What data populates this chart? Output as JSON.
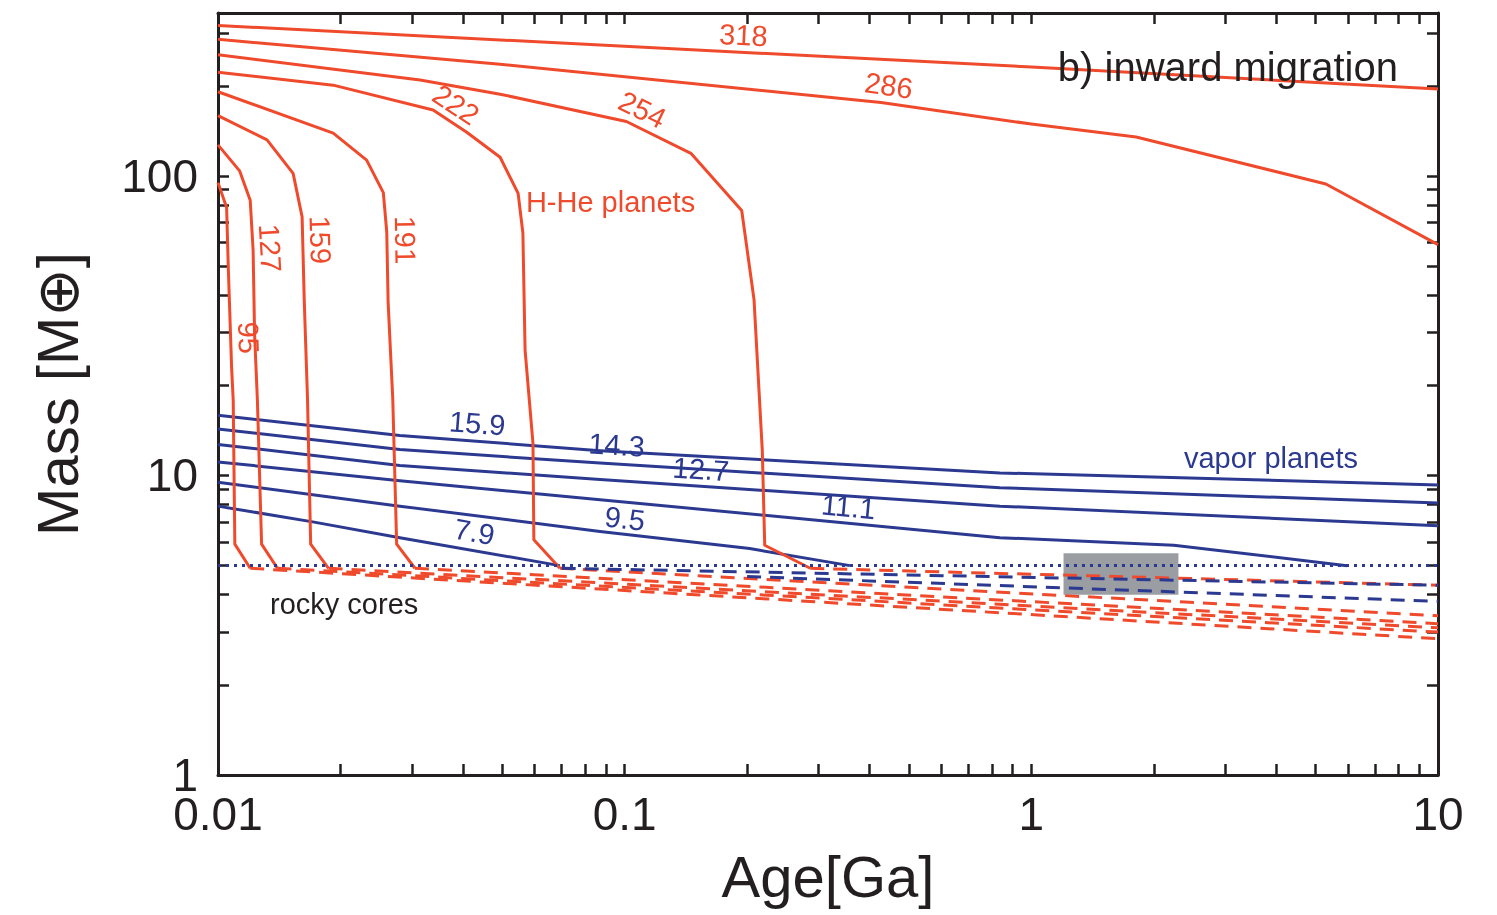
{
  "chart_data": {
    "type": "line",
    "title": "b) inward migration",
    "xlabel": "Age[Ga]",
    "ylabel": "Mass [M⊕]",
    "log": "xy",
    "grid": false,
    "marker": "none",
    "xlim": [
      0.01,
      10
    ],
    "ylim": [
      1,
      350
    ],
    "xticks": [
      0.01,
      {
        "value": 0.02,
        "label": null
      },
      {
        "value": 0.03,
        "label": null
      },
      {
        "value": 0.04,
        "label": null
      },
      {
        "value": 0.05,
        "label": null
      },
      {
        "value": 0.06,
        "label": null
      },
      {
        "value": 0.07,
        "label": null
      },
      {
        "value": 0.08,
        "label": null
      },
      {
        "value": 0.09,
        "label": null
      },
      0.1,
      {
        "value": 0.2,
        "label": null
      },
      {
        "value": 0.3,
        "label": null
      },
      {
        "value": 0.4,
        "label": null
      },
      {
        "value": 0.5,
        "label": null
      },
      {
        "value": 0.6,
        "label": null
      },
      {
        "value": 0.7,
        "label": null
      },
      {
        "value": 0.8,
        "label": null
      },
      {
        "value": 0.9,
        "label": null
      },
      1,
      {
        "value": 2,
        "label": null
      },
      {
        "value": 3,
        "label": null
      },
      {
        "value": 4,
        "label": null
      },
      {
        "value": 5,
        "label": null
      },
      {
        "value": 6,
        "label": null
      },
      {
        "value": 7,
        "label": null
      },
      {
        "value": 8,
        "label": null
      },
      {
        "value": 9,
        "label": null
      },
      10
    ],
    "yticks": [
      1,
      {
        "value": 2,
        "label": null
      },
      {
        "value": 3,
        "label": null
      },
      {
        "value": 4,
        "label": null
      },
      {
        "value": 5,
        "label": null
      },
      {
        "value": 6,
        "label": null
      },
      {
        "value": 7,
        "label": null
      },
      {
        "value": 8,
        "label": null
      },
      {
        "value": 9,
        "label": null
      },
      10,
      {
        "value": 20,
        "label": null
      },
      {
        "value": 30,
        "label": null
      },
      {
        "value": 40,
        "label": null
      },
      {
        "value": 50,
        "label": null
      },
      {
        "value": 60,
        "label": null
      },
      {
        "value": 70,
        "label": null
      },
      {
        "value": 80,
        "label": null
      },
      {
        "value": 90,
        "label": null
      },
      100,
      {
        "value": 200,
        "label": null
      },
      {
        "value": 300,
        "label": null
      }
    ],
    "ref_lines": [
      {
        "axis": "y",
        "value": 5,
        "label": "rocky cores",
        "color": "#2b3990",
        "line_style": "dotted"
      }
    ],
    "series": [
      {
        "color": "#9a9ea3",
        "line_style": "solid",
        "x": [
          1.2,
          2.3
        ],
        "values": [
          null,
          null
        ],
        "lower": [
          4.0,
          4.0
        ],
        "upper": [
          5.5,
          5.5
        ]
      },
      {
        "color": "#ef4a2c",
        "line_style": "dashed",
        "x": [
          0.012,
          10
        ],
        "values": [
          4.9,
          2.85
        ]
      },
      {
        "color": "#ef4a2c",
        "line_style": "dashed",
        "x": [
          0.014,
          10
        ],
        "values": [
          4.9,
          3.0
        ]
      },
      {
        "color": "#ef4a2c",
        "line_style": "dashed",
        "x": [
          0.0187,
          10
        ],
        "values": [
          4.9,
          3.1
        ]
      },
      {
        "color": "#ef4a2c",
        "line_style": "dashed",
        "x": [
          0.0305,
          10
        ],
        "values": [
          4.9,
          3.2
        ]
      },
      {
        "color": "#ef4a2c",
        "line_style": "dashed",
        "x": [
          0.0693,
          10
        ],
        "values": [
          4.9,
          3.4
        ]
      },
      {
        "color": "#ef4a2c",
        "line_style": "dashed",
        "x": [
          0.286,
          10
        ],
        "values": [
          4.9,
          4.3
        ]
      },
      {
        "color": "#2b3990",
        "line_style": "dashed",
        "x": [
          0.07,
          10
        ],
        "values": [
          4.9,
          4.3
        ]
      },
      {
        "color": "#2b3990",
        "line_style": "dashed",
        "x": [
          0.2,
          10
        ],
        "values": [
          4.6,
          3.8
        ]
      },
      {
        "name": "vapor planets",
        "color": "#2b3990",
        "line_style": "solid",
        "x": [
          0.01,
          0.028,
          0.087,
          0.837,
          10
        ],
        "values": [
          15.9,
          13.6,
          12.1,
          10.2,
          9.3
        ]
      },
      {
        "color": "#2b3990",
        "line_style": "solid",
        "x": [
          0.01,
          0.028,
          0.087,
          0.837,
          10
        ],
        "values": [
          14.3,
          12.2,
          11.0,
          9.1,
          8.1
        ]
      },
      {
        "color": "#2b3990",
        "line_style": "solid",
        "x": [
          0.01,
          0.028,
          0.087,
          0.837,
          10
        ],
        "values": [
          12.7,
          10.8,
          9.7,
          7.9,
          6.8
        ]
      },
      {
        "color": "#2b3990",
        "line_style": "solid",
        "x": [
          0.01,
          0.028,
          0.087,
          0.837,
          2.24,
          5.97
        ],
        "values": [
          11.1,
          9.6,
          8.3,
          6.2,
          5.85,
          5.0
        ]
      },
      {
        "color": "#2b3990",
        "line_style": "solid",
        "x": [
          0.01,
          0.028,
          0.087,
          0.203,
          0.358
        ],
        "values": [
          9.5,
          7.9,
          6.5,
          5.7,
          5.0
        ]
      },
      {
        "color": "#2b3990",
        "line_style": "solid",
        "x": [
          0.01,
          0.0171,
          0.028,
          0.0693
        ],
        "values": [
          7.9,
          7.0,
          6.2,
          5.0
        ]
      },
      {
        "color": "#ef4a2c",
        "line_style": "solid",
        "x": [
          0.01,
          0.1,
          1,
          10
        ],
        "values": [
          318,
          271,
          231,
          195
        ]
      },
      {
        "color": "#ef4a2c",
        "line_style": "solid",
        "x": [
          0.01,
          0.0494,
          0.427,
          1,
          1.81,
          5.3,
          10
        ],
        "values": [
          286,
          236,
          176,
          149,
          135,
          94,
          59
        ]
      },
      {
        "color": "#ef4a2c",
        "line_style": "solid",
        "x": [
          0.01,
          0.0314,
          0.0494,
          0.101,
          0.1455,
          0.194,
          0.208,
          0.218,
          0.221,
          0.286
        ],
        "values": [
          254,
          209,
          187.5,
          152,
          119,
          76.7,
          38.7,
          12.1,
          5.85,
          4.9
        ]
      },
      {
        "name": "H-He planets",
        "color": "#ef4a2c",
        "line_style": "solid",
        "x": [
          0.01,
          0.0192,
          0.0338,
          0.0409,
          0.0494,
          0.0547,
          0.0562,
          0.0569,
          0.0595,
          0.0598,
          0.0693
        ],
        "values": [
          222,
          201,
          166,
          140,
          115.5,
          87.5,
          64.5,
          26.2,
          12.8,
          6.1,
          4.9
        ]
      },
      {
        "color": "#ef4a2c",
        "line_style": "solid",
        "x": [
          0.01,
          0.0192,
          0.0232,
          0.0255,
          0.026,
          0.0262,
          0.0269,
          0.0275,
          0.0305
        ],
        "values": [
          191,
          139,
          113,
          88,
          65,
          38,
          18,
          5.9,
          4.9
        ]
      },
      {
        "color": "#ef4a2c",
        "line_style": "solid",
        "x": [
          0.01,
          0.0132,
          0.0153,
          0.0161,
          0.0163,
          0.0166,
          0.0169,
          0.0187
        ],
        "values": [
          159,
          132,
          102,
          73,
          38,
          18,
          5.9,
          4.9
        ]
      },
      {
        "color": "#ef4a2c",
        "line_style": "solid",
        "x": [
          0.01,
          0.0113,
          0.012,
          0.0122,
          0.0123,
          0.0125,
          0.0128,
          0.014
        ],
        "values": [
          127,
          104,
          83,
          56.5,
          29.8,
          17.8,
          5.9,
          4.9
        ]
      },
      {
        "color": "#ef4a2c",
        "line_style": "solid",
        "x": [
          0.01,
          0.0105,
          0.0106,
          0.0108,
          0.0109,
          0.011,
          0.012
        ],
        "values": [
          95,
          78.5,
          49.5,
          23,
          17.8,
          5.9,
          4.9
        ]
      }
    ],
    "annotations": [
      {
        "text": "318",
        "x": 0.195,
        "y": 259
      },
      {
        "text": "286",
        "x": 0.44,
        "y": 176
      },
      {
        "text": "254",
        "x": 0.106,
        "y": 148
      },
      {
        "text": "222",
        "x": 0.0365,
        "y": 155
      },
      {
        "text": "191",
        "x": 0.0262,
        "y": 61
      },
      {
        "text": "159",
        "x": 0.0162,
        "y": 61
      },
      {
        "text": "127",
        "x": 0.0122,
        "y": 57
      },
      {
        "text": "95",
        "x": 0.0108,
        "y": 28.7
      },
      {
        "text": "15.9",
        "x": 0.0431,
        "y": 13.1
      },
      {
        "text": "14.3",
        "x": 0.095,
        "y": 11.1
      },
      {
        "text": "12.7",
        "x": 0.153,
        "y": 9.2
      },
      {
        "text": "11.1",
        "x": 0.352,
        "y": 6.9
      },
      {
        "text": "9.5",
        "x": 0.099,
        "y": 6.3
      },
      {
        "text": "7.9",
        "x": 0.042,
        "y": 5.7
      }
    ]
  }
}
